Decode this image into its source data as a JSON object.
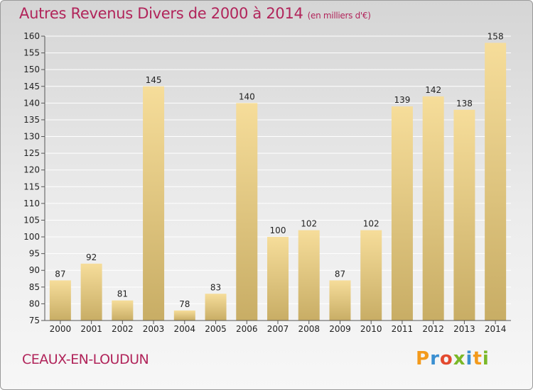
{
  "chart_data": {
    "type": "bar",
    "title": "Autres Revenus Divers de 2000 à 2014",
    "unit_note": "(en milliers d'€)",
    "categories": [
      "2000",
      "2001",
      "2002",
      "2003",
      "2004",
      "2005",
      "2006",
      "2007",
      "2008",
      "2009",
      "2010",
      "2011",
      "2012",
      "2013",
      "2014"
    ],
    "values": [
      87,
      92,
      81,
      145,
      78,
      83,
      140,
      100,
      102,
      87,
      102,
      139,
      142,
      138,
      158
    ],
    "ylim": [
      75,
      160
    ],
    "yticks": [
      75,
      80,
      85,
      90,
      95,
      100,
      105,
      110,
      115,
      120,
      125,
      130,
      135,
      140,
      145,
      150,
      155,
      160
    ],
    "grid": true,
    "xlabel": "",
    "ylabel": ""
  },
  "footer": {
    "place": "CEAUX-EN-LOUDUN"
  },
  "logo": {
    "letters": [
      "P",
      "r",
      "o",
      "x",
      "i",
      "t",
      "i"
    ],
    "colors": [
      "#f39a1c",
      "#3a8fd1",
      "#e34a2f",
      "#7ab828",
      "#3a8fd1",
      "#f39a1c",
      "#7ab828"
    ]
  },
  "colors": {
    "title": "#b1245a",
    "bar_light": "#f6dd9a",
    "bar_dark": "#c8ad65",
    "grid": "#ffffff",
    "axis": "#555555"
  }
}
